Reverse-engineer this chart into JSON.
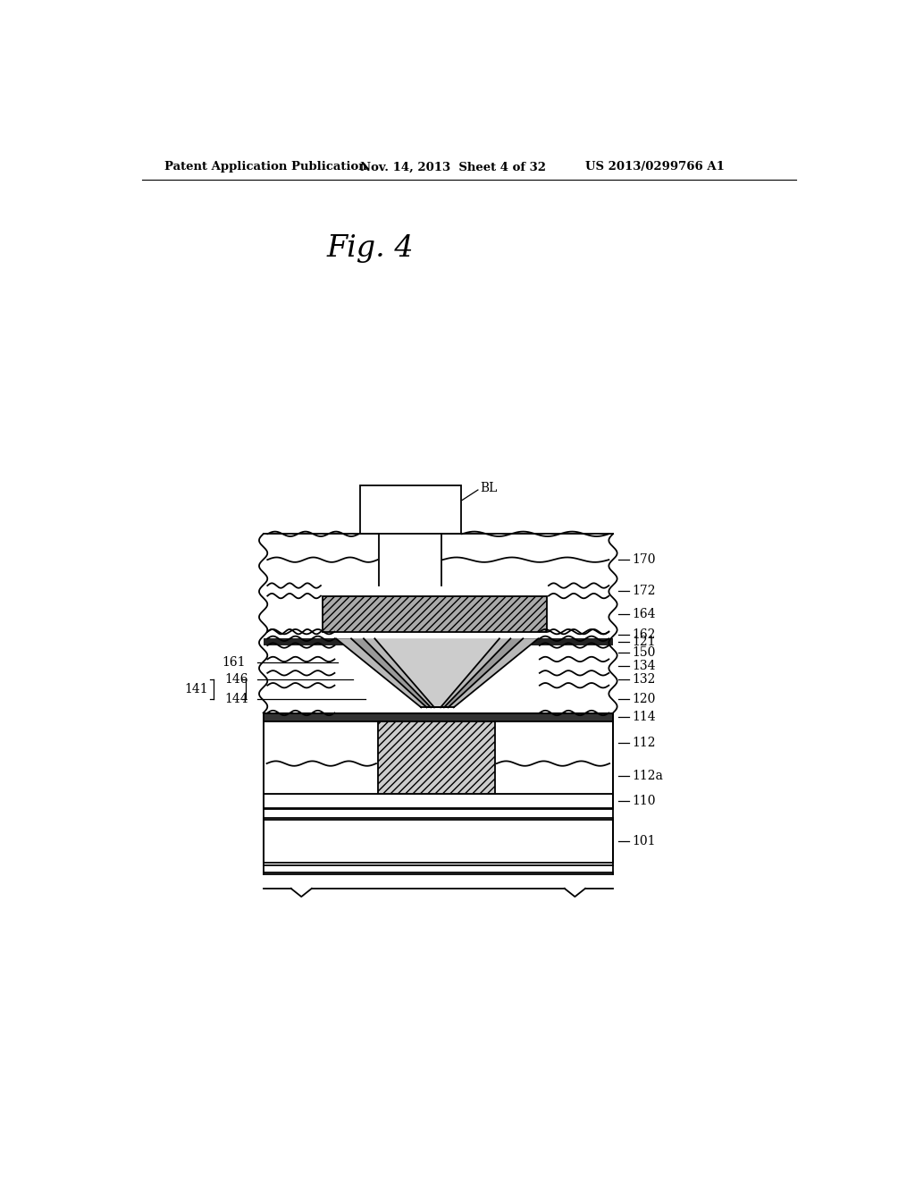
{
  "fig_title": "Fig. 4",
  "header_left": "Patent Application Publication",
  "header_center": "Nov. 14, 2013  Sheet 4 of 32",
  "header_right": "US 2013/0299766 A1",
  "bg_color": "#ffffff",
  "line_color": "#000000",
  "label_BL": "BL",
  "labels_right": [
    "170",
    "172",
    "164",
    "162",
    "121",
    "150",
    "134",
    "132",
    "120",
    "114",
    "112",
    "112a",
    "110",
    "101"
  ],
  "labels_left_single": [
    "161"
  ],
  "labels_left_group": [
    "141",
    "146",
    "144"
  ]
}
